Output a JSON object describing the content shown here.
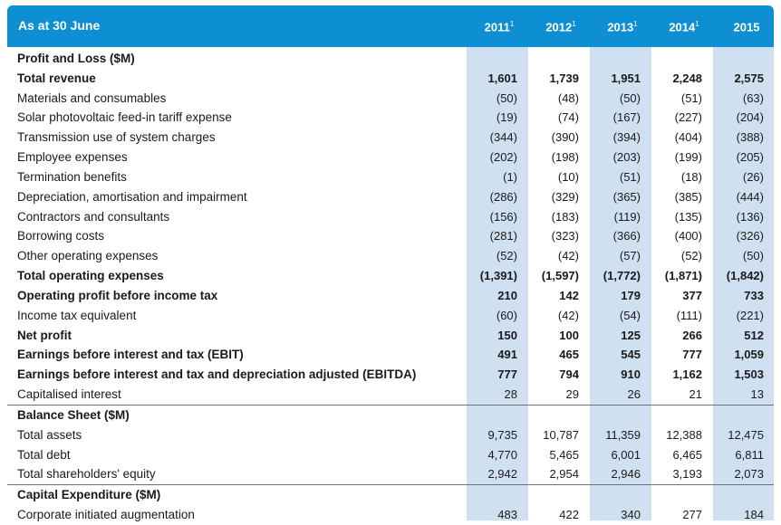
{
  "header": {
    "title": "As at 30 June",
    "years": [
      {
        "label": "2011",
        "note": "1"
      },
      {
        "label": "2012",
        "note": "1"
      },
      {
        "label": "2013",
        "note": "1"
      },
      {
        "label": "2014",
        "note": "1"
      },
      {
        "label": "2015",
        "note": ""
      }
    ]
  },
  "rows": [
    {
      "label": "Profit and Loss ($M)",
      "type": "section",
      "values": [
        "",
        "",
        "",
        "",
        ""
      ]
    },
    {
      "label": "Total revenue",
      "type": "bold",
      "values": [
        "1,601",
        "1,739",
        "1,951",
        "2,248",
        "2,575"
      ]
    },
    {
      "label": "Materials and consumables",
      "type": "normal",
      "values": [
        "(50)",
        "(48)",
        "(50)",
        "(51)",
        "(63)"
      ]
    },
    {
      "label": "Solar photovoltaic feed-in tariff expense",
      "type": "normal",
      "values": [
        "(19)",
        "(74)",
        "(167)",
        "(227)",
        "(204)"
      ]
    },
    {
      "label": "Transmission use of system charges",
      "type": "normal",
      "values": [
        "(344)",
        "(390)",
        "(394)",
        "(404)",
        "(388)"
      ]
    },
    {
      "label": "Employee expenses",
      "type": "normal",
      "values": [
        "(202)",
        "(198)",
        "(203)",
        "(199)",
        "(205)"
      ]
    },
    {
      "label": "Termination benefits",
      "type": "normal",
      "values": [
        "(1)",
        "(10)",
        "(51)",
        "(18)",
        "(26)"
      ]
    },
    {
      "label": "Depreciation, amortisation and impairment",
      "type": "normal",
      "values": [
        "(286)",
        "(329)",
        "(365)",
        "(385)",
        "(444)"
      ]
    },
    {
      "label": "Contractors and consultants",
      "type": "normal",
      "values": [
        "(156)",
        "(183)",
        "(119)",
        "(135)",
        "(136)"
      ]
    },
    {
      "label": "Borrowing costs",
      "type": "normal",
      "values": [
        "(281)",
        "(323)",
        "(366)",
        "(400)",
        "(326)"
      ]
    },
    {
      "label": "Other operating expenses",
      "type": "normal",
      "values": [
        "(52)",
        "(42)",
        "(57)",
        "(52)",
        "(50)"
      ]
    },
    {
      "label": "Total operating expenses",
      "type": "bold",
      "values": [
        "(1,391)",
        "(1,597)",
        "(1,772)",
        "(1,871)",
        "(1,842)"
      ]
    },
    {
      "label": "Operating profit before income tax",
      "type": "bold",
      "values": [
        "210",
        "142",
        "179",
        "377",
        "733"
      ]
    },
    {
      "label": "Income tax equivalent",
      "type": "normal",
      "values": [
        "(60)",
        "(42)",
        "(54)",
        "(111)",
        "(221)"
      ]
    },
    {
      "label": "Net profit",
      "type": "bold",
      "values": [
        "150",
        "100",
        "125",
        "266",
        "512"
      ]
    },
    {
      "label": "Earnings before interest and tax (EBIT)",
      "type": "bold",
      "values": [
        "491",
        "465",
        "545",
        "777",
        "1,059"
      ]
    },
    {
      "label": "Earnings before interest and tax and depreciation adjusted (EBITDA)",
      "type": "bold",
      "values": [
        "777",
        "794",
        "910",
        "1,162",
        "1,503"
      ]
    },
    {
      "label": "Capitalised interest",
      "type": "normal",
      "values": [
        "28",
        "29",
        "26",
        "21",
        "13"
      ]
    },
    {
      "label": "Balance Sheet ($M)",
      "type": "section",
      "values": [
        "",
        "",
        "",
        "",
        ""
      ]
    },
    {
      "label": "Total assets",
      "type": "normal",
      "values": [
        "9,735",
        "10,787",
        "11,359",
        "12,388",
        "12,475"
      ]
    },
    {
      "label": "Total debt",
      "type": "normal",
      "values": [
        "4,770",
        "5,465",
        "6,001",
        "6,465",
        "6,811"
      ]
    },
    {
      "label": "Total shareholders' equity",
      "type": "normal",
      "values": [
        "2,942",
        "2,954",
        "2,946",
        "3,193",
        "2,073"
      ]
    },
    {
      "label": "Capital Expenditure ($M)",
      "type": "section",
      "values": [
        "",
        "",
        "",
        "",
        ""
      ]
    },
    {
      "label": "Corporate initiated augmentation",
      "type": "normal",
      "values": [
        "483",
        "422",
        "340",
        "277",
        "184"
      ]
    }
  ]
}
